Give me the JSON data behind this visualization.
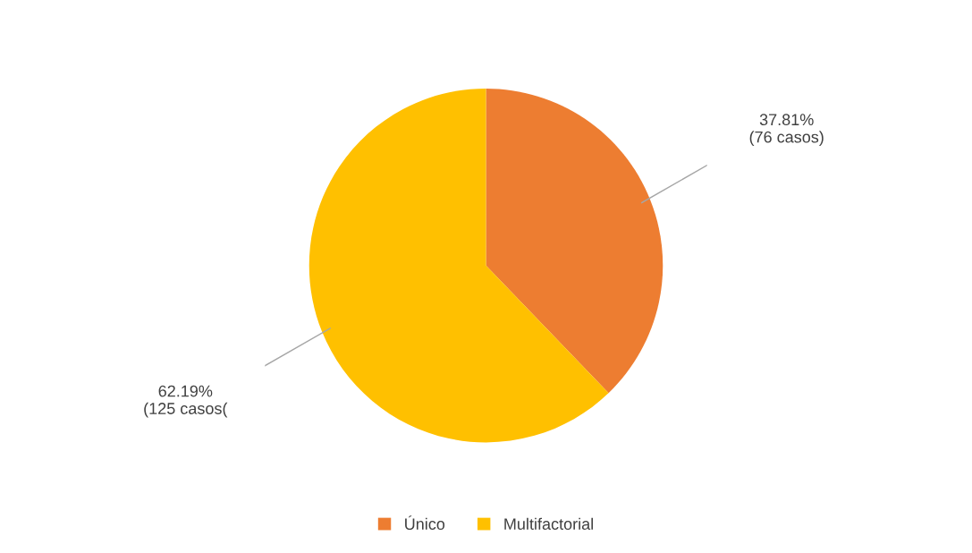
{
  "chart_data": {
    "type": "pie",
    "categories": [
      "Único",
      "Multifactorial"
    ],
    "values": [
      37.81,
      62.19
    ],
    "colors": [
      "#ed7d31",
      "#ffc000"
    ],
    "value_labels": [
      "37.81%\n(76 casos)",
      "62.19%\n(125 casos("
    ],
    "legend": "bottom"
  }
}
